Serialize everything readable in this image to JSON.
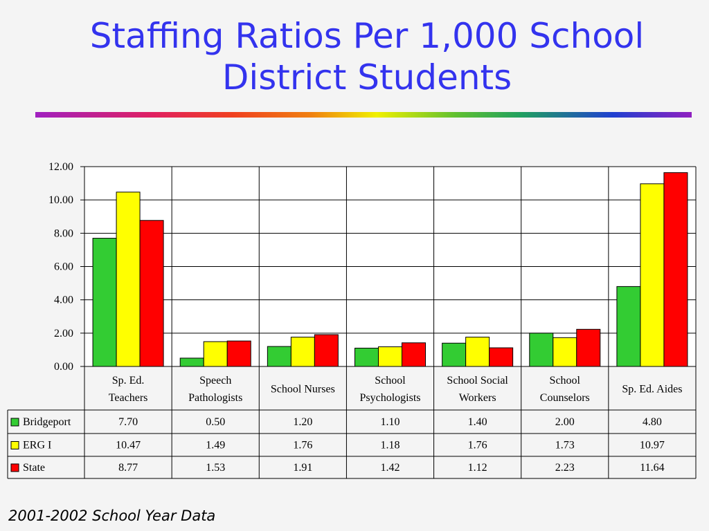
{
  "title_line1": "Staffing Ratios Per 1,000 School",
  "title_line2": "District Students",
  "footnote": "2001-2002 School Year Data",
  "colors": {
    "title": "#3333ee",
    "Bridgeport": "#33cc33",
    "ERG I": "#ffff00",
    "State": "#ff0000"
  },
  "chart_data": {
    "type": "bar",
    "title": "Staffing Ratios Per 1,000 School District Students",
    "ylim": [
      0,
      12
    ],
    "yticks": [
      "12.00",
      "10.00",
      "8.00",
      "6.00",
      "4.00",
      "2.00",
      "0.00"
    ],
    "grid": true,
    "legend": "data-table",
    "categories": [
      [
        "Sp. Ed.",
        "Teachers"
      ],
      [
        "Speech",
        "Pathologists"
      ],
      [
        "School Nurses"
      ],
      [
        "School",
        "Psychologists"
      ],
      [
        "School Social",
        "Workers"
      ],
      [
        "School",
        "Counselors"
      ],
      [
        "Sp. Ed. Aides"
      ]
    ],
    "series": [
      {
        "name": "Bridgeport",
        "values": [
          7.7,
          0.5,
          1.2,
          1.1,
          1.4,
          2.0,
          4.8
        ],
        "labels": [
          "7.70",
          "0.50",
          "1.20",
          "1.10",
          "1.40",
          "2.00",
          "4.80"
        ]
      },
      {
        "name": "ERG I",
        "values": [
          10.47,
          1.49,
          1.76,
          1.18,
          1.76,
          1.73,
          10.97
        ],
        "labels": [
          "10.47",
          "1.49",
          "1.76",
          "1.18",
          "1.76",
          "1.73",
          "10.97"
        ]
      },
      {
        "name": "State",
        "values": [
          8.77,
          1.53,
          1.91,
          1.42,
          1.12,
          2.23,
          11.64
        ],
        "labels": [
          "8.77",
          "1.53",
          "1.91",
          "1.42",
          "1.12",
          "2.23",
          "11.64"
        ]
      }
    ]
  }
}
